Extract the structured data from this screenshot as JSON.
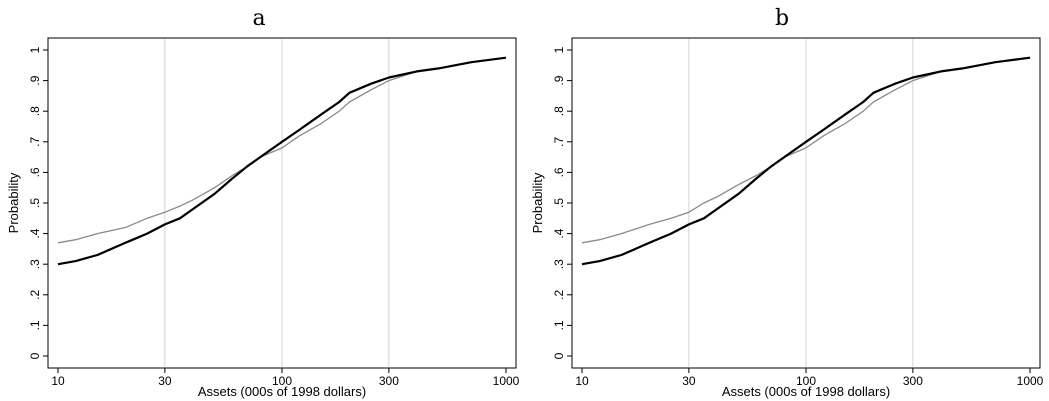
{
  "chart_data": [
    {
      "type": "line",
      "title": "a",
      "xlabel": "Assets (000s of 1998 dollars)",
      "ylabel": "Probability",
      "xscale": "log",
      "xlim": [
        10,
        1000
      ],
      "ylim": [
        0,
        1
      ],
      "x_ticks": [
        10,
        30,
        100,
        300,
        1000
      ],
      "x_tick_labels": [
        "10",
        "30",
        "100",
        "300",
        "1000"
      ],
      "y_ticks": [
        0,
        0.1,
        0.2,
        0.3,
        0.4,
        0.5,
        0.6,
        0.7,
        0.8,
        0.9,
        1
      ],
      "y_tick_labels": [
        "0",
        ".1",
        ".2",
        ".3",
        ".4",
        ".5",
        ".6",
        ".7",
        ".8",
        ".9",
        "1"
      ],
      "grid": "vertical",
      "series": [
        {
          "style": "black-thick",
          "x": [
            10,
            12,
            15,
            20,
            25,
            30,
            35,
            40,
            50,
            60,
            70,
            80,
            100,
            120,
            150,
            180,
            200,
            250,
            300,
            400,
            500,
            700,
            1000
          ],
          "y": [
            0.3,
            0.31,
            0.33,
            0.37,
            0.4,
            0.43,
            0.45,
            0.48,
            0.53,
            0.58,
            0.62,
            0.65,
            0.7,
            0.74,
            0.79,
            0.83,
            0.86,
            0.89,
            0.91,
            0.93,
            0.94,
            0.96,
            0.975
          ]
        },
        {
          "style": "gray-thin",
          "x": [
            10,
            12,
            15,
            20,
            25,
            30,
            35,
            40,
            50,
            60,
            70,
            80,
            100,
            120,
            150,
            180,
            200,
            250,
            300,
            400,
            500,
            700,
            1000
          ],
          "y": [
            0.37,
            0.38,
            0.4,
            0.42,
            0.45,
            0.47,
            0.49,
            0.51,
            0.55,
            0.59,
            0.62,
            0.65,
            0.68,
            0.72,
            0.76,
            0.8,
            0.83,
            0.87,
            0.9,
            0.93,
            0.94,
            0.96,
            0.975
          ]
        }
      ]
    },
    {
      "type": "line",
      "title": "b",
      "xlabel": "Assets (000s of 1998 dollars)",
      "ylabel": "Probability",
      "xscale": "log",
      "xlim": [
        10,
        1000
      ],
      "ylim": [
        0,
        1
      ],
      "x_ticks": [
        10,
        30,
        100,
        300,
        1000
      ],
      "x_tick_labels": [
        "10",
        "30",
        "100",
        "300",
        "1000"
      ],
      "y_ticks": [
        0,
        0.1,
        0.2,
        0.3,
        0.4,
        0.5,
        0.6,
        0.7,
        0.8,
        0.9,
        1
      ],
      "y_tick_labels": [
        "0",
        ".1",
        ".2",
        ".3",
        ".4",
        ".5",
        ".6",
        ".7",
        ".8",
        ".9",
        "1"
      ],
      "grid": "vertical",
      "series": [
        {
          "style": "black-thick",
          "x": [
            10,
            12,
            15,
            20,
            25,
            30,
            35,
            40,
            50,
            60,
            70,
            80,
            100,
            120,
            150,
            180,
            200,
            250,
            300,
            400,
            500,
            700,
            1000
          ],
          "y": [
            0.3,
            0.31,
            0.33,
            0.37,
            0.4,
            0.43,
            0.45,
            0.48,
            0.53,
            0.58,
            0.62,
            0.65,
            0.7,
            0.74,
            0.79,
            0.83,
            0.86,
            0.89,
            0.91,
            0.93,
            0.94,
            0.96,
            0.975
          ]
        },
        {
          "style": "gray-thin",
          "x": [
            10,
            12,
            15,
            20,
            25,
            30,
            35,
            40,
            50,
            60,
            70,
            80,
            100,
            120,
            150,
            180,
            200,
            250,
            300,
            400,
            500,
            700,
            1000
          ],
          "y": [
            0.37,
            0.38,
            0.4,
            0.43,
            0.45,
            0.47,
            0.5,
            0.52,
            0.56,
            0.59,
            0.62,
            0.65,
            0.68,
            0.72,
            0.76,
            0.8,
            0.83,
            0.87,
            0.9,
            0.93,
            0.94,
            0.96,
            0.975
          ]
        }
      ]
    }
  ]
}
